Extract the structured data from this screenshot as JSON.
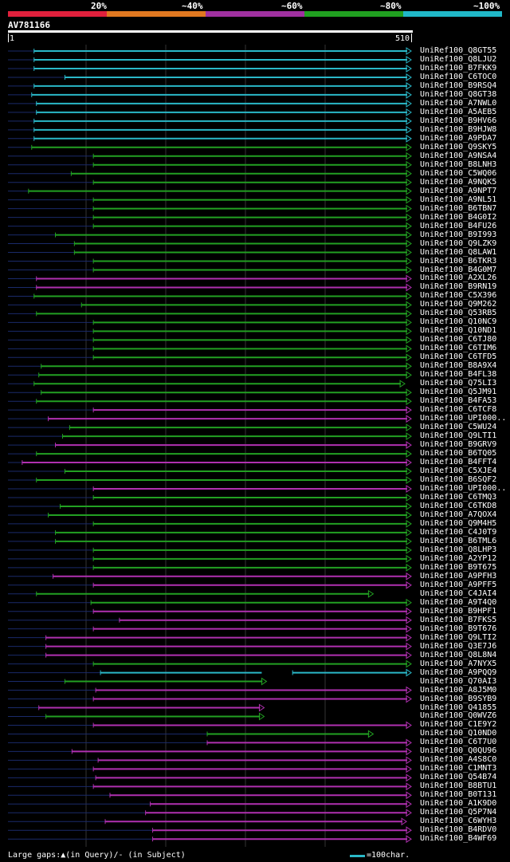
{
  "scale": {
    "labels": [
      "20%",
      "~40%",
      "~60%",
      "~80%",
      "~100%"
    ],
    "colors": [
      "#e0203c",
      "#e07820",
      "#a030a0",
      "#20a020",
      "#20b8c8"
    ]
  },
  "query": {
    "name": "AV781166",
    "start": "1",
    "end": "510"
  },
  "colors": {
    "cyan": "#2ab8c8",
    "green": "#22a022",
    "magenta": "#b030b0",
    "leader": "#1a2a6a"
  },
  "hits": [
    {
      "label": "UniRef100_Q8GT55",
      "start": 33,
      "end": 510,
      "color": "cyan"
    },
    {
      "label": "UniRef100_Q8LJU2",
      "start": 33,
      "end": 510,
      "color": "cyan"
    },
    {
      "label": "UniRef100_B7FKK9",
      "start": 33,
      "end": 510,
      "color": "cyan"
    },
    {
      "label": "UniRef100_C6TOC0",
      "start": 72,
      "end": 510,
      "color": "cyan"
    },
    {
      "label": "UniRef100_B9RSQ4",
      "start": 33,
      "end": 510,
      "color": "cyan"
    },
    {
      "label": "UniRef100_Q8GT38",
      "start": 30,
      "end": 510,
      "color": "cyan"
    },
    {
      "label": "UniRef100_A7NWL0",
      "start": 36,
      "end": 510,
      "color": "cyan"
    },
    {
      "label": "UniRef100_A5AEB5",
      "start": 36,
      "end": 510,
      "color": "cyan"
    },
    {
      "label": "UniRef100_B9HV66",
      "start": 33,
      "end": 510,
      "color": "cyan"
    },
    {
      "label": "UniRef100_B9HJW8",
      "start": 33,
      "end": 510,
      "color": "cyan"
    },
    {
      "label": "UniRef100_A9PDA7",
      "start": 33,
      "end": 510,
      "color": "cyan"
    },
    {
      "label": "UniRef100_Q9SKY5",
      "start": 30,
      "end": 510,
      "color": "green"
    },
    {
      "label": "UniRef100_A9NSA4",
      "start": 108,
      "end": 510,
      "color": "green"
    },
    {
      "label": "UniRef100_B8LNH3",
      "start": 108,
      "end": 510,
      "color": "green"
    },
    {
      "label": "UniRef100_C5WQ06",
      "start": 80,
      "end": 510,
      "color": "green"
    },
    {
      "label": "UniRef100_A9NQK5",
      "start": 108,
      "end": 510,
      "color": "green"
    },
    {
      "label": "UniRef100_A9NPT7",
      "start": 26,
      "end": 510,
      "color": "green"
    },
    {
      "label": "UniRef100_A9NL51",
      "start": 108,
      "end": 510,
      "color": "green"
    },
    {
      "label": "UniRef100_B6TBN7",
      "start": 108,
      "end": 510,
      "color": "green"
    },
    {
      "label": "UniRef100_B4G0I2",
      "start": 108,
      "end": 510,
      "color": "green"
    },
    {
      "label": "UniRef100_B4FU26",
      "start": 108,
      "end": 510,
      "color": "green"
    },
    {
      "label": "UniRef100_B9I993",
      "start": 60,
      "end": 510,
      "color": "green"
    },
    {
      "label": "UniRef100_Q9LZK9",
      "start": 84,
      "end": 510,
      "color": "green"
    },
    {
      "label": "UniRef100_Q8LAW1",
      "start": 84,
      "end": 510,
      "color": "green"
    },
    {
      "label": "UniRef100_B6TKR3",
      "start": 108,
      "end": 510,
      "color": "green"
    },
    {
      "label": "UniRef100_B4G0M7",
      "start": 108,
      "end": 510,
      "color": "green"
    },
    {
      "label": "UniRef100_A2XL26",
      "start": 36,
      "end": 510,
      "color": "magenta"
    },
    {
      "label": "UniRef100_B9RN19",
      "start": 36,
      "end": 510,
      "color": "magenta"
    },
    {
      "label": "UniRef100_C5X396",
      "start": 33,
      "end": 510,
      "color": "green"
    },
    {
      "label": "UniRef100_Q9M262",
      "start": 93,
      "end": 510,
      "color": "green"
    },
    {
      "label": "UniRef100_Q53RB5",
      "start": 36,
      "end": 510,
      "color": "green"
    },
    {
      "label": "UniRef100_Q10NC9",
      "start": 108,
      "end": 510,
      "color": "green"
    },
    {
      "label": "UniRef100_Q10ND1",
      "start": 108,
      "end": 510,
      "color": "green"
    },
    {
      "label": "UniRef100_C6TJ80",
      "start": 108,
      "end": 510,
      "color": "green"
    },
    {
      "label": "UniRef100_C6TIM6",
      "start": 108,
      "end": 510,
      "color": "green"
    },
    {
      "label": "UniRef100_C6TFD5",
      "start": 108,
      "end": 510,
      "color": "green"
    },
    {
      "label": "UniRef100_B8A9X4",
      "start": 42,
      "end": 510,
      "color": "green"
    },
    {
      "label": "UniRef100_B4FL38",
      "start": 39,
      "end": 510,
      "color": "green"
    },
    {
      "label": "UniRef100_Q75LI3",
      "start": 33,
      "end": 502,
      "color": "green"
    },
    {
      "label": "UniRef100_Q5JM91",
      "start": 42,
      "end": 510,
      "color": "green"
    },
    {
      "label": "UniRef100_B4FA53",
      "start": 36,
      "end": 510,
      "color": "green"
    },
    {
      "label": "UniRef100_C6TCF8",
      "start": 108,
      "end": 510,
      "color": "magenta"
    },
    {
      "label": "UniRef100_UPI000..",
      "start": 51,
      "end": 510,
      "color": "magenta"
    },
    {
      "label": "UniRef100_C5WU24",
      "start": 78,
      "end": 510,
      "color": "green"
    },
    {
      "label": "UniRef100_Q9LTI1",
      "start": 69,
      "end": 510,
      "color": "green"
    },
    {
      "label": "UniRef100_B9GRV9",
      "start": 60,
      "end": 510,
      "color": "magenta"
    },
    {
      "label": "UniRef100_B6TQ05",
      "start": 36,
      "end": 510,
      "color": "green"
    },
    {
      "label": "UniRef100_B4FFT4",
      "start": 18,
      "end": 510,
      "color": "magenta"
    },
    {
      "label": "UniRef100_C5XJE4",
      "start": 72,
      "end": 510,
      "color": "green"
    },
    {
      "label": "UniRef100_B6SQF2",
      "start": 36,
      "end": 510,
      "color": "green"
    },
    {
      "label": "UniRef100_UPI000..",
      "start": 108,
      "end": 510,
      "color": "magenta"
    },
    {
      "label": "UniRef100_C6TMQ3",
      "start": 108,
      "end": 510,
      "color": "green"
    },
    {
      "label": "UniRef100_C6TKD8",
      "start": 66,
      "end": 510,
      "color": "green"
    },
    {
      "label": "UniRef100_A7QOX4",
      "start": 51,
      "end": 510,
      "color": "green"
    },
    {
      "label": "UniRef100_Q9M4H5",
      "start": 108,
      "end": 510,
      "color": "green"
    },
    {
      "label": "UniRef100_C4J0T9",
      "start": 60,
      "end": 510,
      "color": "green"
    },
    {
      "label": "UniRef100_B6TML6",
      "start": 60,
      "end": 510,
      "color": "green"
    },
    {
      "label": "UniRef100_Q8LHP3",
      "start": 108,
      "end": 510,
      "color": "green"
    },
    {
      "label": "UniRef100_A2YP12",
      "start": 108,
      "end": 510,
      "color": "green"
    },
    {
      "label": "UniRef100_B9T675",
      "start": 108,
      "end": 510,
      "color": "green"
    },
    {
      "label": "UniRef100_A9PFH3",
      "start": 57,
      "end": 510,
      "color": "magenta"
    },
    {
      "label": "UniRef100_A9PFF5",
      "start": 108,
      "end": 510,
      "color": "magenta"
    },
    {
      "label": "UniRef100_C4JAI4",
      "start": 36,
      "end": 462,
      "color": "green"
    },
    {
      "label": "UniRef100_A9T4Q0",
      "start": 105,
      "end": 510,
      "color": "green"
    },
    {
      "label": "UniRef100_B9HPF1",
      "start": 108,
      "end": 510,
      "color": "magenta"
    },
    {
      "label": "UniRef100_B7FKS5",
      "start": 141,
      "end": 510,
      "color": "magenta"
    },
    {
      "label": "UniRef100_B9T676",
      "start": 108,
      "end": 510,
      "color": "magenta"
    },
    {
      "label": "UniRef100_Q9LTI2",
      "start": 48,
      "end": 510,
      "color": "magenta"
    },
    {
      "label": "UniRef100_Q3E7J6",
      "start": 48,
      "end": 510,
      "color": "magenta"
    },
    {
      "label": "UniRef100_Q8L8N4",
      "start": 48,
      "end": 510,
      "color": "magenta"
    },
    {
      "label": "UniRef100_A7NYX5",
      "start": 108,
      "end": 510,
      "color": "green"
    },
    {
      "label": "UniRef100_A9PQQ9",
      "start": 117,
      "end": 510,
      "color": "cyan",
      "gap": [
        326,
        360
      ]
    },
    {
      "label": "UniRef100_Q70AI3",
      "start": 72,
      "end": 327,
      "color": "green"
    },
    {
      "label": "UniRef100_A8J5M0",
      "start": 111,
      "end": 510,
      "color": "magenta"
    },
    {
      "label": "UniRef100_B9SYB9",
      "start": 108,
      "end": 510,
      "color": "magenta"
    },
    {
      "label": "UniRef100_Q41855",
      "start": 39,
      "end": 324,
      "color": "magenta"
    },
    {
      "label": "UniRef100_Q0WVZ6",
      "start": 48,
      "end": 324,
      "color": "green"
    },
    {
      "label": "UniRef100_C1E9Y2",
      "start": 108,
      "end": 510,
      "color": "magenta"
    },
    {
      "label": "UniRef100_Q10ND0",
      "start": 252,
      "end": 462,
      "color": "green"
    },
    {
      "label": "UniRef100_C6T7U0",
      "start": 252,
      "end": 510,
      "color": "magenta"
    },
    {
      "label": "UniRef100_Q0QU96",
      "start": 81,
      "end": 510,
      "color": "magenta"
    },
    {
      "label": "UniRef100_A4S8C0",
      "start": 114,
      "end": 510,
      "color": "magenta"
    },
    {
      "label": "UniRef100_C1MNT3",
      "start": 108,
      "end": 510,
      "color": "magenta"
    },
    {
      "label": "UniRef100_Q54B74",
      "start": 111,
      "end": 510,
      "color": "magenta"
    },
    {
      "label": "UniRef100_B8BTU1",
      "start": 108,
      "end": 510,
      "color": "magenta"
    },
    {
      "label": "UniRef100_B0T131",
      "start": 129,
      "end": 510,
      "color": "magenta"
    },
    {
      "label": "UniRef100_A1K9D0",
      "start": 180,
      "end": 510,
      "color": "magenta"
    },
    {
      "label": "UniRef100_Q5P7N4",
      "start": 174,
      "end": 510,
      "color": "magenta"
    },
    {
      "label": "UniRef100_C6WYH3",
      "start": 123,
      "end": 504,
      "color": "magenta"
    },
    {
      "label": "UniRef100_B4RDV0",
      "start": 183,
      "end": 510,
      "color": "magenta"
    },
    {
      "label": "UniRef100_B4WF69",
      "start": 183,
      "end": 510,
      "color": "magenta"
    }
  ],
  "footer": {
    "gaps": "Large gaps:▲(in Query)/- (in Subject)",
    "legend": "=100char."
  }
}
